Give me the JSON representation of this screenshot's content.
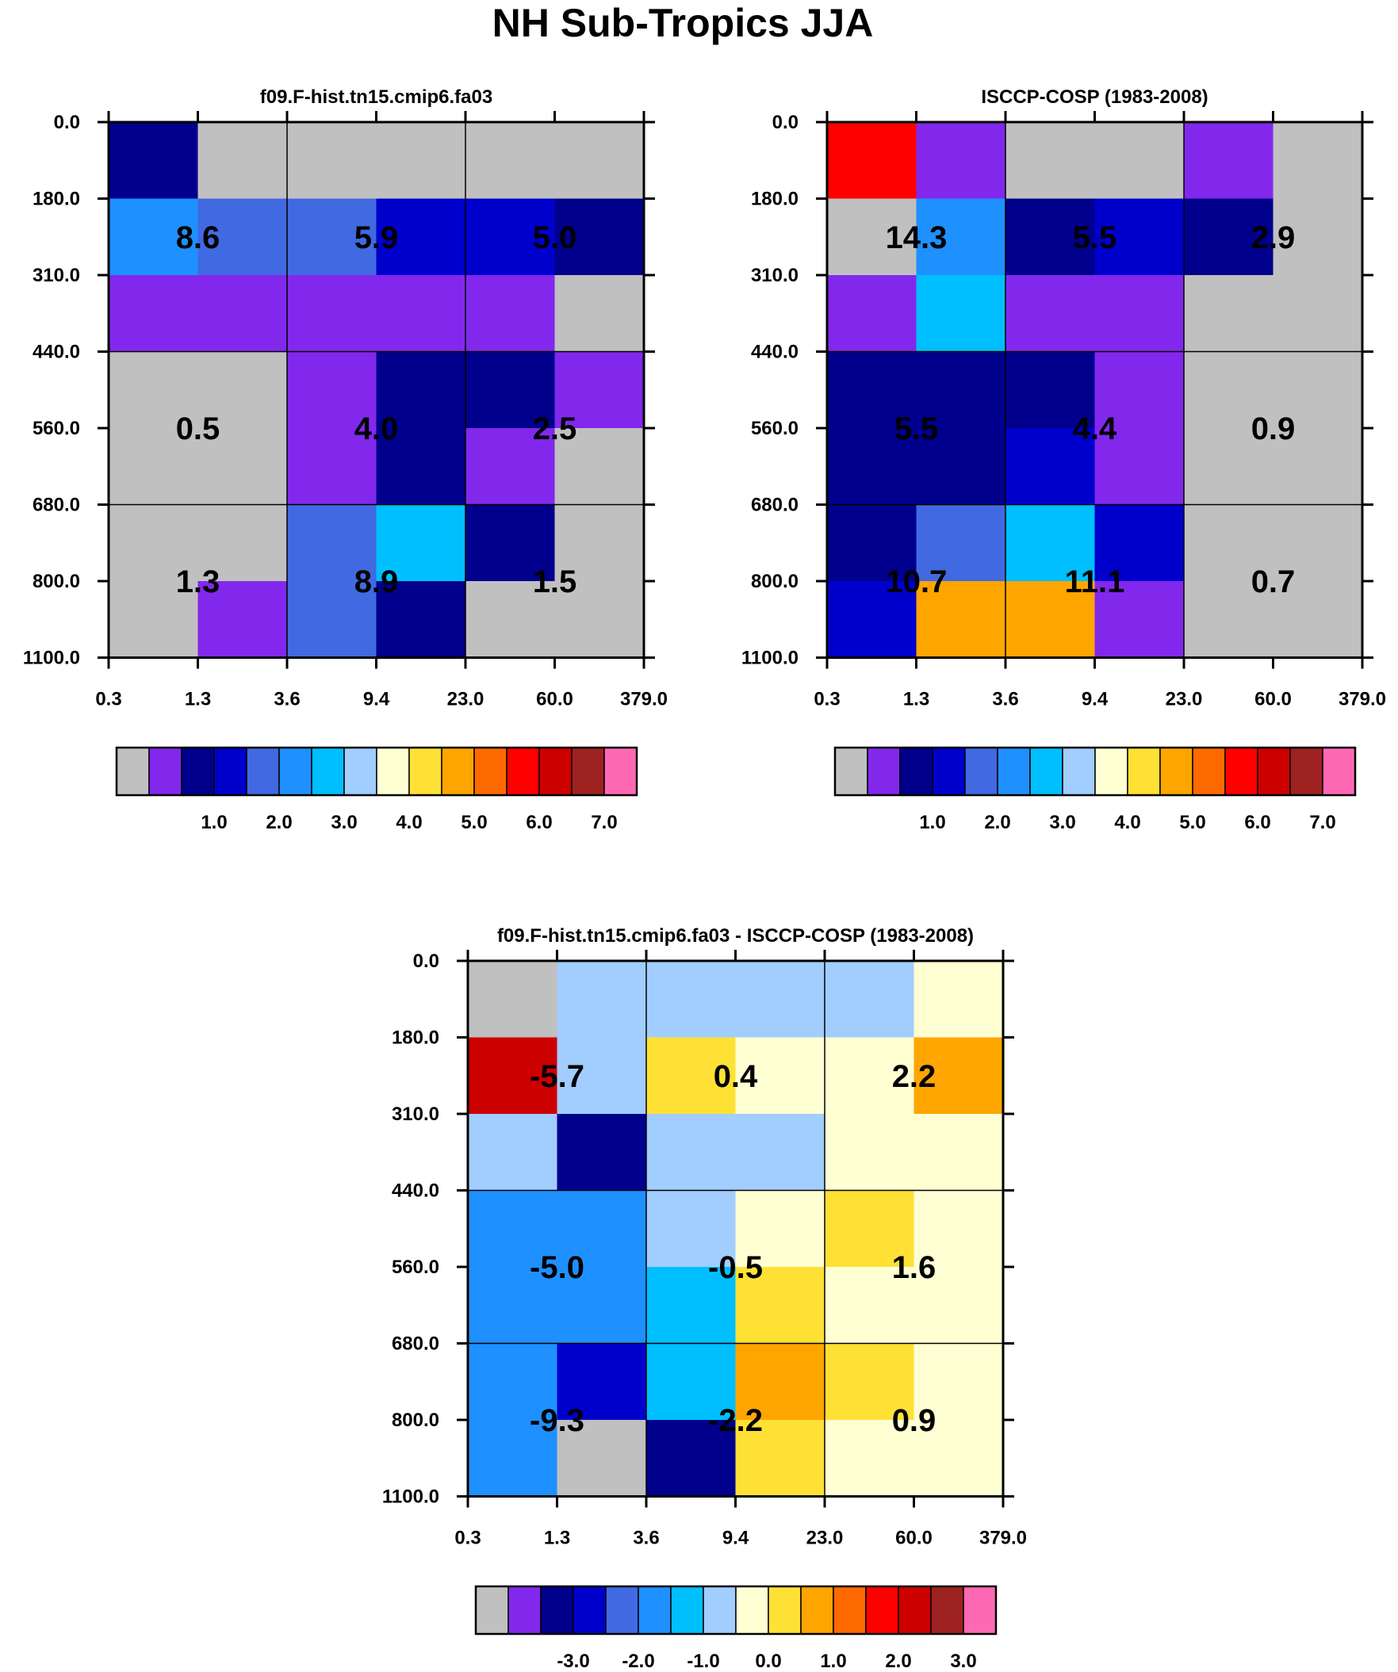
{
  "title": "NH Sub-Tropics JJA",
  "palette": [
    "#c0c0c0",
    "#8228ec",
    "#00008c",
    "#0000cd",
    "#4169e1",
    "#1e90ff",
    "#00bfff",
    "#a2cdff",
    "#ffffd4",
    "#ffe135",
    "#ffa500",
    "#ff6a00",
    "#ff0000",
    "#cd0000",
    "#9f2222",
    "#ff69b4"
  ],
  "chart_data": [
    {
      "type": "heatmap",
      "title": "f09.F-hist.tn15.cmip6.fa03",
      "x_tick_labels": [
        "0.3",
        "1.3",
        "3.6",
        "9.4",
        "23.0",
        "60.0",
        "379.0"
      ],
      "y_tick_labels": [
        "0.0",
        "180.0",
        "310.0",
        "440.0",
        "560.0",
        "680.0",
        "800.0",
        "1100.0"
      ],
      "cell_color_index": [
        [
          2,
          0,
          0,
          0,
          0,
          0
        ],
        [
          5,
          4,
          4,
          3,
          3,
          2
        ],
        [
          1,
          1,
          1,
          1,
          1,
          0
        ],
        [
          0,
          0,
          1,
          2,
          2,
          1
        ],
        [
          0,
          0,
          1,
          2,
          1,
          0
        ],
        [
          0,
          0,
          4,
          6,
          2,
          0
        ],
        [
          0,
          1,
          4,
          2,
          0,
          0
        ]
      ],
      "group_labels": [
        [
          "8.6",
          "5.9",
          "5.0"
        ],
        [
          "0.5",
          "4.0",
          "2.5"
        ],
        [
          "1.3",
          "8.9",
          "1.5"
        ]
      ],
      "colorbar": {
        "labels": [
          "1.0",
          "2.0",
          "3.0",
          "4.0",
          "5.0",
          "6.0",
          "7.0"
        ]
      }
    },
    {
      "type": "heatmap",
      "title": "ISCCP-COSP (1983-2008)",
      "x_tick_labels": [
        "0.3",
        "1.3",
        "3.6",
        "9.4",
        "23.0",
        "60.0",
        "379.0"
      ],
      "y_tick_labels": [
        "0.0",
        "180.0",
        "310.0",
        "440.0",
        "560.0",
        "680.0",
        "800.0",
        "1100.0"
      ],
      "cell_color_index": [
        [
          12,
          1,
          0,
          0,
          1,
          0
        ],
        [
          0,
          5,
          2,
          3,
          2,
          0
        ],
        [
          1,
          6,
          1,
          1,
          0,
          0
        ],
        [
          2,
          2,
          2,
          1,
          0,
          0
        ],
        [
          2,
          2,
          3,
          1,
          0,
          0
        ],
        [
          2,
          4,
          6,
          3,
          0,
          0
        ],
        [
          3,
          10,
          10,
          1,
          0,
          0
        ]
      ],
      "group_labels": [
        [
          "14.3",
          "5.5",
          "2.9"
        ],
        [
          "5.5",
          "4.4",
          "0.9"
        ],
        [
          "10.7",
          "11.1",
          "0.7"
        ]
      ],
      "colorbar": {
        "labels": [
          "1.0",
          "2.0",
          "3.0",
          "4.0",
          "5.0",
          "6.0",
          "7.0"
        ]
      }
    },
    {
      "type": "heatmap",
      "title": "f09.F-hist.tn15.cmip6.fa03 - ISCCP-COSP (1983-2008)",
      "x_tick_labels": [
        "0.3",
        "1.3",
        "3.6",
        "9.4",
        "23.0",
        "60.0",
        "379.0"
      ],
      "y_tick_labels": [
        "0.0",
        "180.0",
        "310.0",
        "440.0",
        "560.0",
        "680.0",
        "800.0",
        "1100.0"
      ],
      "cell_color_index": [
        [
          0,
          7,
          7,
          7,
          7,
          8
        ],
        [
          13,
          7,
          9,
          8,
          8,
          10
        ],
        [
          7,
          2,
          7,
          7,
          8,
          8
        ],
        [
          5,
          5,
          7,
          8,
          9,
          8
        ],
        [
          5,
          5,
          6,
          9,
          8,
          8
        ],
        [
          5,
          3,
          6,
          10,
          9,
          8
        ],
        [
          5,
          0,
          2,
          9,
          8,
          8
        ]
      ],
      "group_labels": [
        [
          "-5.7",
          "0.4",
          "2.2"
        ],
        [
          "-5.0",
          "-0.5",
          "1.6"
        ],
        [
          "-9.3",
          "-2.2",
          "0.9"
        ]
      ],
      "colorbar": {
        "labels": [
          "-3.0",
          "-2.0",
          "-1.0",
          "0.0",
          "1.0",
          "2.0",
          "3.0"
        ]
      }
    }
  ]
}
